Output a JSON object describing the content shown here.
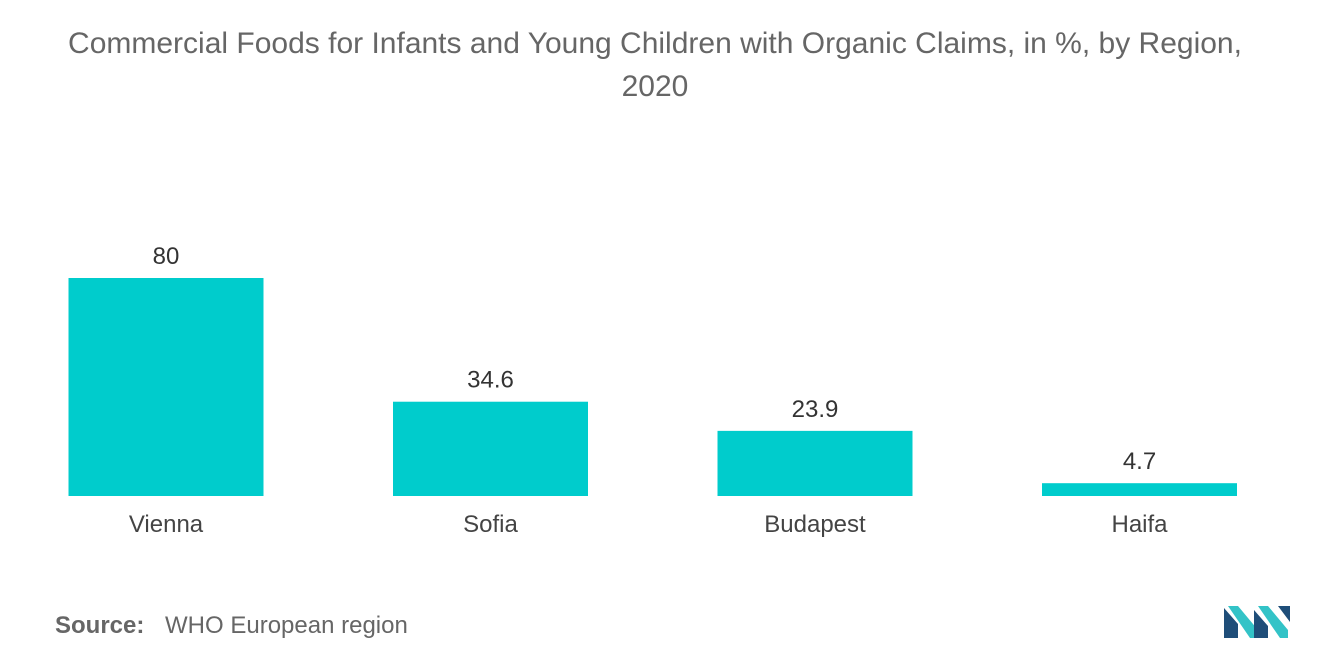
{
  "chart_data": {
    "type": "bar",
    "title_lines": [
      "Commercial Foods for Infants and Young Children with Organic Claims, in %, by Region,",
      "2020"
    ],
    "categories": [
      "Vienna",
      "Sofia",
      "Budapest",
      "Haifa"
    ],
    "values": [
      80,
      34.6,
      23.9,
      4.7
    ],
    "value_labels": [
      "80",
      "34.6",
      "23.9",
      "4.7"
    ],
    "xlabel": "",
    "ylabel": "",
    "ylim": [
      0,
      80
    ],
    "grid": false,
    "legend": "none",
    "bar_color": "#00CCCC"
  },
  "source": {
    "label": "Source:",
    "text": "WHO European region"
  },
  "logo": {
    "icon": "mordor-intelligence-logo-icon",
    "colors": [
      "#1F4E79",
      "#33C3C7"
    ]
  }
}
